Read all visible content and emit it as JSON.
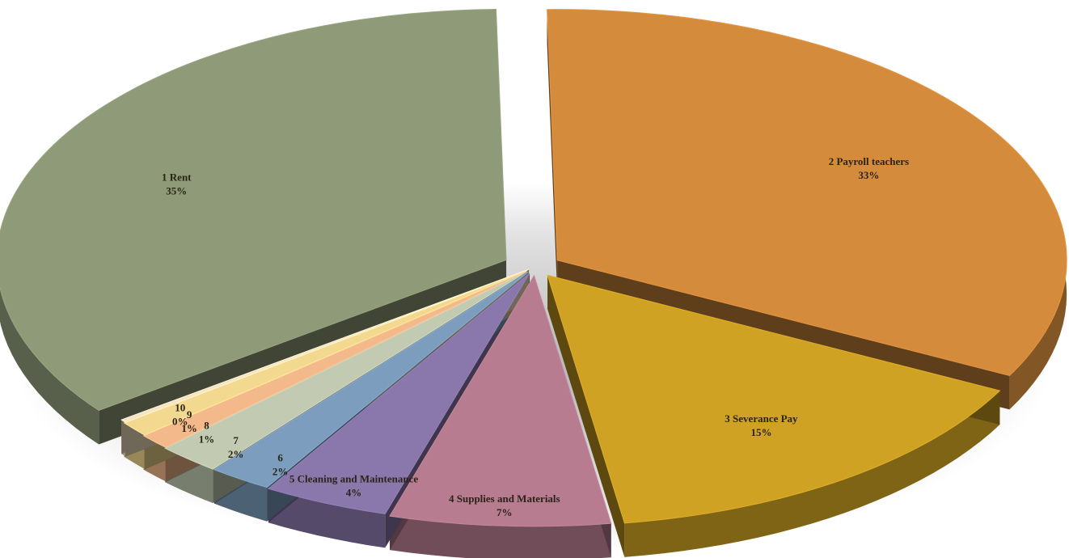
{
  "chart_data": {
    "type": "pie",
    "title": "",
    "slices": [
      {
        "num": "1",
        "name": "Rent",
        "pct_label": "35%",
        "value": 35,
        "color": "#8e9a78"
      },
      {
        "num": "2",
        "name": "Payroll teachers",
        "pct_label": "33%",
        "value": 33,
        "color": "#d48b3c"
      },
      {
        "num": "3",
        "name": "Severance Pay",
        "pct_label": "15%",
        "value": 15,
        "color": "#cfa223"
      },
      {
        "num": "4",
        "name": "Supplies and Materials",
        "pct_label": "7%",
        "value": 7,
        "color": "#b77c90"
      },
      {
        "num": "5",
        "name": "Cleaning and Maintenance",
        "pct_label": "4%",
        "value": 4,
        "color": "#8a77ab"
      },
      {
        "num": "6",
        "name": "",
        "pct_label": "2%",
        "value": 2,
        "color": "#7c9dbd"
      },
      {
        "num": "7",
        "name": "",
        "pct_label": "2%",
        "value": 2,
        "color": "#c2cbb2"
      },
      {
        "num": "8",
        "name": "",
        "pct_label": "1%",
        "value": 1,
        "color": "#f4b98a"
      },
      {
        "num": "9",
        "name": "",
        "pct_label": "1%",
        "value": 1,
        "color": "#f3d98f"
      },
      {
        "num": "10",
        "name": "",
        "pct_label": "0%",
        "value": 0.2,
        "color": "#f6e4c4"
      }
    ],
    "legend": "none",
    "style": "3d exploded pie"
  }
}
